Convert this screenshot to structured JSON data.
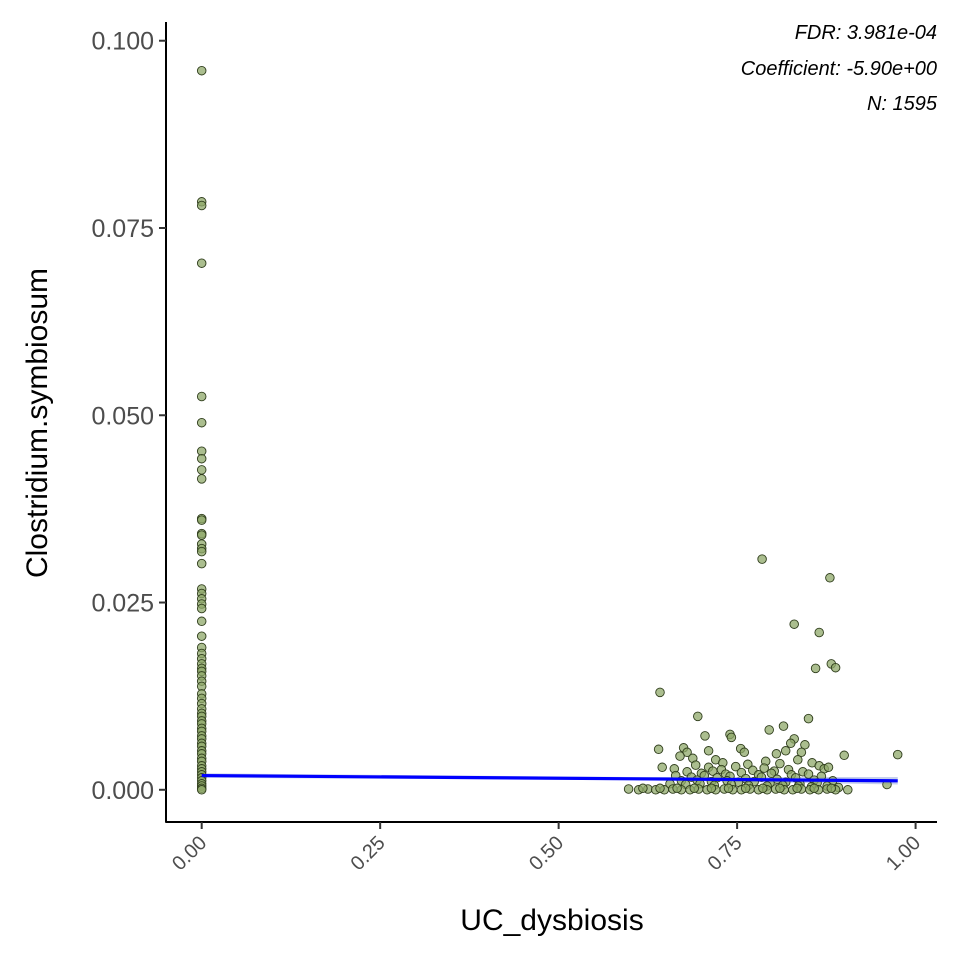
{
  "chart_data": {
    "type": "scatter",
    "xlabel": "UC_dysbiosis",
    "ylabel": "Clostridium.symbiosum",
    "xlim": [
      -0.05,
      1.03
    ],
    "ylim": [
      -0.0043,
      0.1025
    ],
    "x_ticks": [
      0.0,
      0.25,
      0.5,
      0.75,
      1.0
    ],
    "x_tick_labels": [
      "0.00",
      "0.25",
      "0.50",
      "0.75",
      "1.00"
    ],
    "y_ticks": [
      0.0,
      0.025,
      0.05,
      0.075,
      0.1
    ],
    "y_tick_labels": [
      "0.000",
      "0.025",
      "0.050",
      "0.075",
      "0.100"
    ],
    "grid": false,
    "point_fill": "#8fa86a",
    "point_stroke": "#2f3d1c",
    "fit_color": "#0000ff",
    "band_color": "#b8c4e8",
    "annotations": [
      "FDR: 3.981e-04",
      "Coefficient: -5.90e+00",
      "N: 1595"
    ],
    "fit_line": {
      "x": [
        0.0,
        0.975
      ],
      "y": [
        0.0019,
        0.0012
      ]
    },
    "band": {
      "x": [
        0.0,
        0.6,
        0.975
      ],
      "lower": [
        0.0016,
        0.0013,
        0.0007
      ],
      "upper": [
        0.0022,
        0.0017,
        0.0017
      ]
    },
    "points_x0": [
      0.096,
      0.0785,
      0.078,
      0.0703,
      0.0525,
      0.049,
      0.0452,
      0.0442,
      0.0427,
      0.0415,
      0.0362,
      0.036,
      0.0342,
      0.034,
      0.0328,
      0.0322,
      0.0318,
      0.0302,
      0.0268,
      0.0262,
      0.0255,
      0.0248,
      0.0242,
      0.0225,
      0.0205,
      0.019,
      0.0182,
      0.0175,
      0.0168,
      0.0162,
      0.0158,
      0.0152,
      0.0145,
      0.0138,
      0.0128,
      0.0122,
      0.0115,
      0.0108,
      0.0102,
      0.0098,
      0.0092,
      0.0088,
      0.0082,
      0.0078,
      0.0072,
      0.0068,
      0.0062,
      0.0058,
      0.0052,
      0.0048,
      0.0042,
      0.0038,
      0.0032,
      0.0028,
      0.0024,
      0.002,
      0.0016,
      0.0012,
      0.0008,
      0.0005,
      0.0002,
      0.0
    ],
    "points": [
      [
        0.785,
        0.0308
      ],
      [
        0.88,
        0.0283
      ],
      [
        0.83,
        0.0221
      ],
      [
        0.865,
        0.021
      ],
      [
        0.882,
        0.0168
      ],
      [
        0.888,
        0.0163
      ],
      [
        0.86,
        0.0162
      ],
      [
        0.642,
        0.013
      ],
      [
        0.695,
        0.0098
      ],
      [
        0.85,
        0.0095
      ],
      [
        0.815,
        0.0085
      ],
      [
        0.795,
        0.008
      ],
      [
        0.705,
        0.0072
      ],
      [
        0.74,
        0.0074
      ],
      [
        0.742,
        0.007
      ],
      [
        0.83,
        0.0068
      ],
      [
        0.825,
        0.0062
      ],
      [
        0.845,
        0.006
      ],
      [
        0.675,
        0.0056
      ],
      [
        0.64,
        0.0054
      ],
      [
        0.68,
        0.005
      ],
      [
        0.71,
        0.0052
      ],
      [
        0.755,
        0.0055
      ],
      [
        0.76,
        0.005
      ],
      [
        0.805,
        0.0048
      ],
      [
        0.818,
        0.0052
      ],
      [
        0.84,
        0.005
      ],
      [
        0.9,
        0.0046
      ],
      [
        0.975,
        0.0047
      ],
      [
        0.67,
        0.0045
      ],
      [
        0.688,
        0.0042
      ],
      [
        0.72,
        0.004
      ],
      [
        0.73,
        0.0036
      ],
      [
        0.765,
        0.0034
      ],
      [
        0.79,
        0.0038
      ],
      [
        0.81,
        0.0035
      ],
      [
        0.835,
        0.004
      ],
      [
        0.855,
        0.0036
      ],
      [
        0.865,
        0.0032
      ],
      [
        0.872,
        0.0028
      ],
      [
        0.878,
        0.003
      ],
      [
        0.645,
        0.003
      ],
      [
        0.662,
        0.0028
      ],
      [
        0.692,
        0.0033
      ],
      [
        0.71,
        0.003
      ],
      [
        0.728,
        0.0027
      ],
      [
        0.748,
        0.0031
      ],
      [
        0.772,
        0.0026
      ],
      [
        0.788,
        0.0029
      ],
      [
        0.802,
        0.0025
      ],
      [
        0.822,
        0.0027
      ],
      [
        0.842,
        0.0024
      ],
      [
        0.68,
        0.0024
      ],
      [
        0.7,
        0.0022
      ],
      [
        0.716,
        0.0025
      ],
      [
        0.734,
        0.0021
      ],
      [
        0.756,
        0.0023
      ],
      [
        0.78,
        0.002
      ],
      [
        0.798,
        0.0022
      ],
      [
        0.826,
        0.002
      ],
      [
        0.85,
        0.0021
      ],
      [
        0.868,
        0.0018
      ],
      [
        0.664,
        0.0019
      ],
      [
        0.686,
        0.0017
      ],
      [
        0.704,
        0.0019
      ],
      [
        0.722,
        0.0016
      ],
      [
        0.74,
        0.0018
      ],
      [
        0.762,
        0.0015
      ],
      [
        0.784,
        0.0017
      ],
      [
        0.806,
        0.0014
      ],
      [
        0.832,
        0.0016
      ],
      [
        0.858,
        0.0013
      ],
      [
        0.884,
        0.0012
      ],
      [
        0.672,
        0.0012
      ],
      [
        0.694,
        0.0013
      ],
      [
        0.714,
        0.0011
      ],
      [
        0.736,
        0.0012
      ],
      [
        0.752,
        0.001
      ],
      [
        0.774,
        0.0011
      ],
      [
        0.796,
        0.0009
      ],
      [
        0.818,
        0.001
      ],
      [
        0.838,
        0.0008
      ],
      [
        0.862,
        0.0009
      ],
      [
        0.96,
        0.0007
      ],
      [
        0.656,
        0.0008
      ],
      [
        0.678,
        0.0007
      ],
      [
        0.698,
        0.0008
      ],
      [
        0.718,
        0.0006
      ],
      [
        0.742,
        0.0007
      ],
      [
        0.766,
        0.0006
      ],
      [
        0.792,
        0.0005
      ],
      [
        0.814,
        0.0006
      ],
      [
        0.836,
        0.0005
      ],
      [
        0.854,
        0.0004
      ],
      [
        0.876,
        0.0005
      ],
      [
        0.892,
        0.0003
      ],
      [
        0.598,
        0.0001
      ],
      [
        0.612,
        0.0
      ],
      [
        0.625,
        0.0001
      ],
      [
        0.636,
        0.0
      ],
      [
        0.648,
        0.0
      ],
      [
        0.66,
        0.0001
      ],
      [
        0.672,
        0.0
      ],
      [
        0.684,
        0.0
      ],
      [
        0.696,
        0.0001
      ],
      [
        0.708,
        0.0
      ],
      [
        0.72,
        0.0
      ],
      [
        0.732,
        0.0001
      ],
      [
        0.744,
        0.0
      ],
      [
        0.756,
        0.0
      ],
      [
        0.768,
        0.0001
      ],
      [
        0.78,
        0.0
      ],
      [
        0.792,
        0.0
      ],
      [
        0.804,
        0.0001
      ],
      [
        0.816,
        0.0
      ],
      [
        0.828,
        0.0
      ],
      [
        0.84,
        0.0001
      ],
      [
        0.852,
        0.0
      ],
      [
        0.864,
        0.0
      ],
      [
        0.876,
        0.0001
      ],
      [
        0.888,
        0.0
      ],
      [
        0.905,
        0.0
      ],
      [
        0.618,
        0.0002
      ],
      [
        0.642,
        0.0002
      ],
      [
        0.666,
        0.0002
      ],
      [
        0.69,
        0.0002
      ],
      [
        0.714,
        0.0002
      ],
      [
        0.738,
        0.0002
      ],
      [
        0.762,
        0.0002
      ],
      [
        0.786,
        0.0002
      ],
      [
        0.81,
        0.0002
      ],
      [
        0.834,
        0.0002
      ],
      [
        0.858,
        0.0002
      ],
      [
        0.882,
        0.0002
      ]
    ]
  }
}
